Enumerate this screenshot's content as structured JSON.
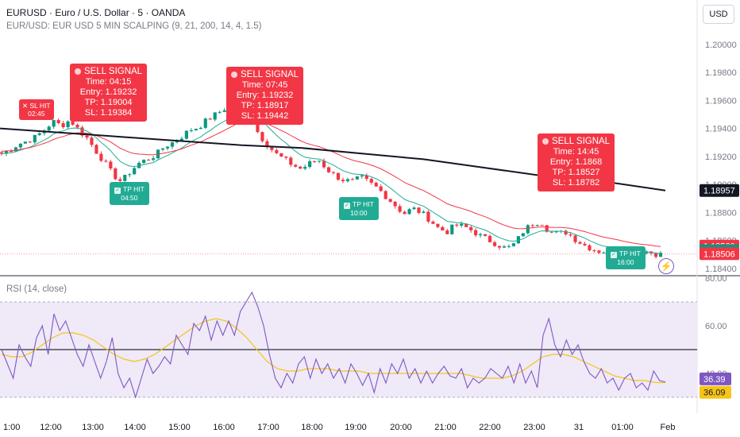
{
  "header": {
    "symbol_line": "EURUSD · Euro / U.S. Dollar · 5 · OANDA",
    "indicator_line": "EUR/USD: EUR USD 5 MIN SCALPING (9, 21, 200, 14, 4, 1.5)",
    "currency_button": "USD"
  },
  "rsi_panel": {
    "label": "RSI (14, close)"
  },
  "colors": {
    "up": "#089981",
    "down": "#f23645",
    "ema_fast": "#22ab94",
    "ema_slow": "#f23645",
    "ema_long": "#131722",
    "rsi": "#7e57c2",
    "rsi_ma": "#f5c518",
    "rsi_band": "#efe9f8"
  },
  "signals": [
    {
      "kind": "sell",
      "title": "SELL SIGNAL",
      "lines": [
        "Time: 04:15",
        "Entry: 1.19232",
        "TP: 1.19004",
        "SL: 1.19384"
      ]
    },
    {
      "kind": "sell",
      "title": "SELL SIGNAL",
      "lines": [
        "Time: 07:45",
        "Entry: 1.19232",
        "TP: 1.18917",
        "SL: 1.19442"
      ]
    },
    {
      "kind": "sell",
      "title": "SELL SIGNAL",
      "lines": [
        "Time: 14:45",
        "Entry: 1.1868",
        "TP: 1.18527",
        "SL: 1.18782"
      ]
    },
    {
      "kind": "sl",
      "title": "SL HIT",
      "time": "02:45"
    },
    {
      "kind": "tp",
      "title": "TP HIT",
      "time": "04:50"
    },
    {
      "kind": "tp",
      "title": "TP HIT",
      "time": "10:00"
    },
    {
      "kind": "tp",
      "title": "TP HIT",
      "time": "16:00"
    }
  ],
  "chart_data": [
    {
      "type": "candlestick",
      "title": "EURUSD · Euro / U.S. Dollar · 5 · OANDA",
      "y_ticks": [
        "1.20000",
        "1.19800",
        "1.19600",
        "1.19400",
        "1.19200",
        "1.19000",
        "1.18800",
        "1.18600",
        "1.18400"
      ],
      "ylim": [
        1.1836,
        1.2009
      ],
      "x_ticks": [
        "1:00",
        "12:00",
        "13:00",
        "14:00",
        "15:00",
        "16:00",
        "17:00",
        "18:00",
        "19:00",
        "20:00",
        "21:00",
        "22:00",
        "23:00",
        "31",
        "01:00",
        "Feb"
      ],
      "close_path": [
        1.1922,
        1.1925,
        1.1929,
        1.1931,
        1.1934,
        1.1939,
        1.1945,
        1.1942,
        1.1946,
        1.1939,
        1.1933,
        1.1924,
        1.1916,
        1.1907,
        1.1902,
        1.1909,
        1.1915,
        1.1918,
        1.1921,
        1.1927,
        1.193,
        1.1934,
        1.1939,
        1.1941,
        1.1946,
        1.195,
        1.1954,
        1.1958,
        1.196,
        1.1955,
        1.1936,
        1.1929,
        1.1922,
        1.1918,
        1.1914,
        1.1911,
        1.1915,
        1.1918,
        1.1911,
        1.1906,
        1.1903,
        1.1902,
        1.1905,
        1.1901,
        1.1897,
        1.1891,
        1.1885,
        1.1879,
        1.1883,
        1.188,
        1.1875,
        1.1869,
        1.1866,
        1.1871,
        1.187,
        1.1867,
        1.1863,
        1.186,
        1.1857,
        1.1854,
        1.1858,
        1.1867,
        1.1872,
        1.1874,
        1.1866,
        1.1865,
        1.1866,
        1.1861,
        1.1857,
        1.1854,
        1.1852,
        1.1853,
        1.1854,
        1.185,
        1.1851,
        1.1853,
        1.1851,
        1.185
      ],
      "ema_long": [
        1.194,
        1.1937,
        1.1934,
        1.1931,
        1.1928,
        1.1926,
        1.1922,
        1.1918,
        1.1912,
        1.1906,
        1.1902,
        1.18957
      ],
      "price_labels": [
        {
          "value": 1.18957,
          "label": "1.18957",
          "style": "ema_long"
        },
        {
          "value": 1.1856,
          "label": "1.18560",
          "style": "down"
        },
        {
          "value": 1.18527,
          "label": "1.18527",
          "style": "up"
        },
        {
          "value": 1.18506,
          "label": "1.18506",
          "style": "down"
        }
      ]
    },
    {
      "type": "line",
      "title": "RSI (14, close)",
      "y_ticks": [
        "80.00",
        "60.00",
        "40.00"
      ],
      "ylim": [
        25,
        80
      ],
      "bands": [
        30,
        50,
        70
      ],
      "rsi": [
        50,
        44,
        38,
        52,
        47,
        43,
        55,
        60,
        48,
        65,
        58,
        62,
        55,
        48,
        43,
        52,
        45,
        38,
        45,
        55,
        40,
        34,
        38,
        30,
        38,
        46,
        40,
        43,
        47,
        44,
        56,
        52,
        48,
        61,
        58,
        64,
        54,
        62,
        56,
        62,
        56,
        66,
        70,
        74,
        68,
        60,
        48,
        38,
        34,
        40,
        36,
        44,
        47,
        38,
        46,
        40,
        44,
        38,
        42,
        36,
        44,
        40,
        35,
        40,
        32,
        42,
        36,
        44,
        40,
        46,
        38,
        42,
        36,
        41,
        36,
        40,
        43,
        39,
        38,
        42,
        34,
        38,
        36,
        38,
        42,
        40,
        38,
        43,
        36,
        44,
        36,
        41,
        34,
        56,
        63,
        52,
        47,
        54,
        48,
        52,
        45,
        40,
        38,
        42,
        36,
        38,
        33,
        38,
        40,
        34,
        36,
        33,
        41,
        37,
        36.39
      ],
      "rsi_ma": [
        48,
        47,
        47,
        49,
        52,
        55,
        57,
        57,
        56,
        54,
        51,
        48,
        46,
        45,
        46,
        48,
        51,
        54,
        57,
        60,
        62,
        63,
        62,
        59,
        55,
        50,
        45,
        42,
        41,
        41,
        42,
        42,
        42,
        41,
        41,
        41,
        40,
        40,
        40,
        40,
        40,
        40,
        40,
        40,
        40,
        40,
        39,
        38,
        38,
        38,
        39,
        41,
        44,
        47,
        48,
        48,
        47,
        45,
        43,
        41,
        39,
        38,
        37,
        37,
        36.2,
        36.09
      ],
      "value_labels": [
        {
          "value": 36.39,
          "label": "36.39",
          "style": "rsi"
        },
        {
          "value": 36.09,
          "label": "36.09",
          "style": "rsi_ma"
        }
      ]
    }
  ]
}
